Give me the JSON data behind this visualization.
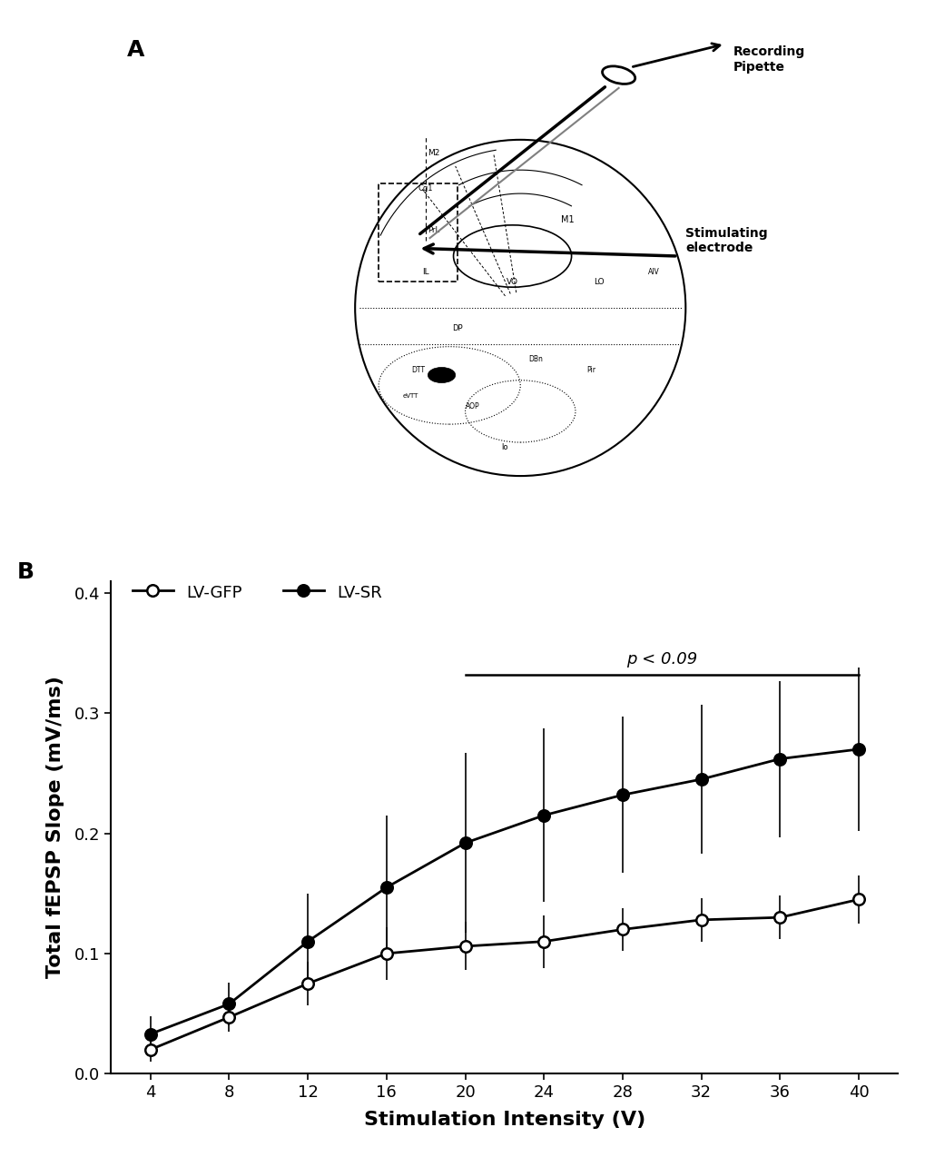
{
  "x": [
    4,
    8,
    12,
    16,
    20,
    24,
    28,
    32,
    36,
    40
  ],
  "lv_gfp_y": [
    0.02,
    0.047,
    0.075,
    0.1,
    0.106,
    0.11,
    0.12,
    0.128,
    0.13,
    0.145
  ],
  "lv_sr_y": [
    0.033,
    0.058,
    0.11,
    0.155,
    0.192,
    0.215,
    0.232,
    0.245,
    0.262,
    0.27
  ],
  "lv_gfp_err": [
    0.01,
    0.012,
    0.018,
    0.022,
    0.02,
    0.022,
    0.018,
    0.018,
    0.018,
    0.02
  ],
  "lv_sr_err": [
    0.015,
    0.018,
    0.04,
    0.06,
    0.075,
    0.072,
    0.065,
    0.062,
    0.065,
    0.068
  ],
  "xlabel": "Stimulation Intensity (V)",
  "ylabel": "Total fEPSP Slope (mV/ms)",
  "ylim": [
    0,
    0.41
  ],
  "yticks": [
    0,
    0.1,
    0.2,
    0.3,
    0.4
  ],
  "xlim": [
    2,
    42
  ],
  "xticks": [
    4,
    8,
    12,
    16,
    20,
    24,
    28,
    32,
    36,
    40
  ],
  "legend_gfp": "LV-GFP",
  "legend_sr": "LV-SR",
  "pvalue_text": "p < 0.09",
  "pvalue_line_x_start": 20,
  "pvalue_line_x_end": 40,
  "pvalue_line_y": 0.332,
  "label_A": "A",
  "label_B": "B",
  "background_color": "#ffffff",
  "line_color": "#000000",
  "marker_size": 9,
  "line_width": 2.0,
  "font_size_label": 16,
  "font_size_tick": 13,
  "font_size_legend": 13,
  "font_size_panel": 18
}
